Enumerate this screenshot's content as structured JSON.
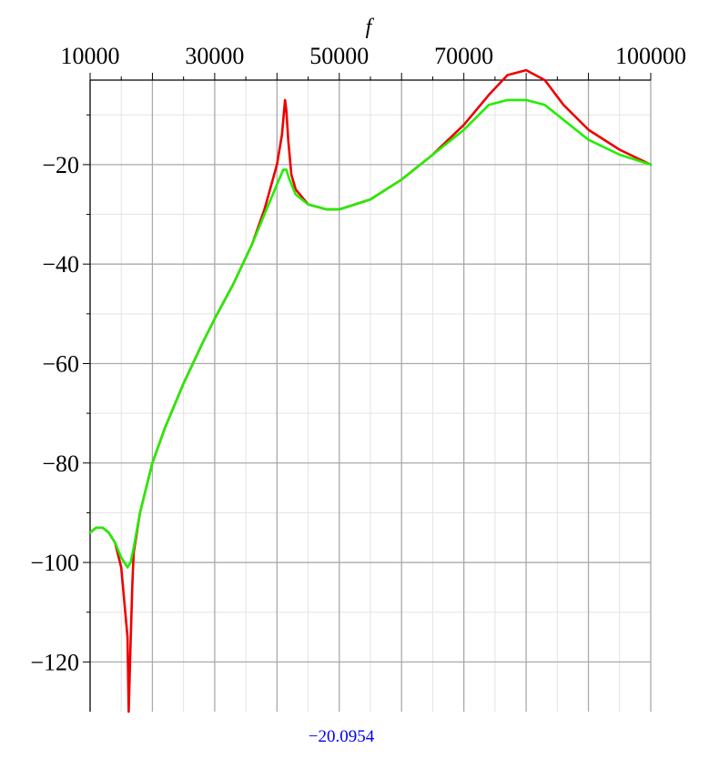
{
  "chart_data": {
    "type": "line",
    "title": "",
    "xlabel": "f",
    "ylabel": "",
    "xlim": [
      10000,
      100000
    ],
    "ylim": [
      -130,
      -3
    ],
    "grid": true,
    "x_major_ticks": [
      10000,
      20000,
      30000,
      40000,
      50000,
      60000,
      70000,
      80000,
      90000,
      100000
    ],
    "x_tick_labels": [
      {
        "value": 10000,
        "label": "10000"
      },
      {
        "value": 30000,
        "label": "30000"
      },
      {
        "value": 50000,
        "label": "50000"
      },
      {
        "value": 70000,
        "label": "70000"
      },
      {
        "value": 100000,
        "label": "100000"
      }
    ],
    "y_tick_labels": [
      {
        "value": -20,
        "label": "−20"
      },
      {
        "value": -40,
        "label": "−40"
      },
      {
        "value": -60,
        "label": "−60"
      },
      {
        "value": -80,
        "label": "−80"
      },
      {
        "value": -100,
        "label": "−100"
      },
      {
        "value": -120,
        "label": "−120"
      }
    ],
    "series": [
      {
        "color": "#ee0000",
        "x": [
          10000,
          11000,
          12000,
          13000,
          14000,
          15000,
          16000,
          16200,
          16500,
          16800,
          17000,
          18000,
          20000,
          22000,
          25000,
          28000,
          30000,
          33000,
          36000,
          38000,
          40000,
          40800,
          41300,
          41500,
          41800,
          42300,
          43000,
          45000,
          48000,
          50000,
          55000,
          60000,
          65000,
          70000,
          74000,
          77000,
          80000,
          83000,
          86000,
          90000,
          95000,
          100000
        ],
        "y": [
          -94,
          -93,
          -93,
          -94,
          -96,
          -101,
          -115,
          -130,
          -116,
          -104,
          -98,
          -90,
          -80,
          -73,
          -64,
          -56,
          -51,
          -44,
          -36,
          -29,
          -20,
          -14,
          -7,
          -9,
          -15,
          -22,
          -25,
          -28,
          -29,
          -29,
          -27,
          -23,
          -18,
          -12,
          -6,
          -2,
          -1,
          -3,
          -8,
          -13,
          -17,
          -20
        ]
      },
      {
        "color": "#22ee00",
        "x": [
          10000,
          11000,
          12000,
          13000,
          14000,
          15000,
          16000,
          16500,
          17000,
          18000,
          20000,
          22000,
          25000,
          28000,
          30000,
          33000,
          36000,
          38000,
          40000,
          41000,
          41500,
          42000,
          43000,
          45000,
          48000,
          50000,
          55000,
          60000,
          65000,
          70000,
          74000,
          77000,
          80000,
          83000,
          86000,
          90000,
          95000,
          100000
        ],
        "y": [
          -94,
          -93,
          -93,
          -94,
          -96,
          -99,
          -101,
          -100,
          -97,
          -90,
          -80,
          -73,
          -64,
          -56,
          -51,
          -44,
          -36,
          -30,
          -24,
          -21,
          -21,
          -23,
          -26,
          -28,
          -29,
          -29,
          -27,
          -23,
          -18,
          -13,
          -8,
          -7,
          -7,
          -8,
          -11,
          -15,
          -18,
          -20
        ]
      }
    ],
    "annotation": "−20.0954"
  }
}
